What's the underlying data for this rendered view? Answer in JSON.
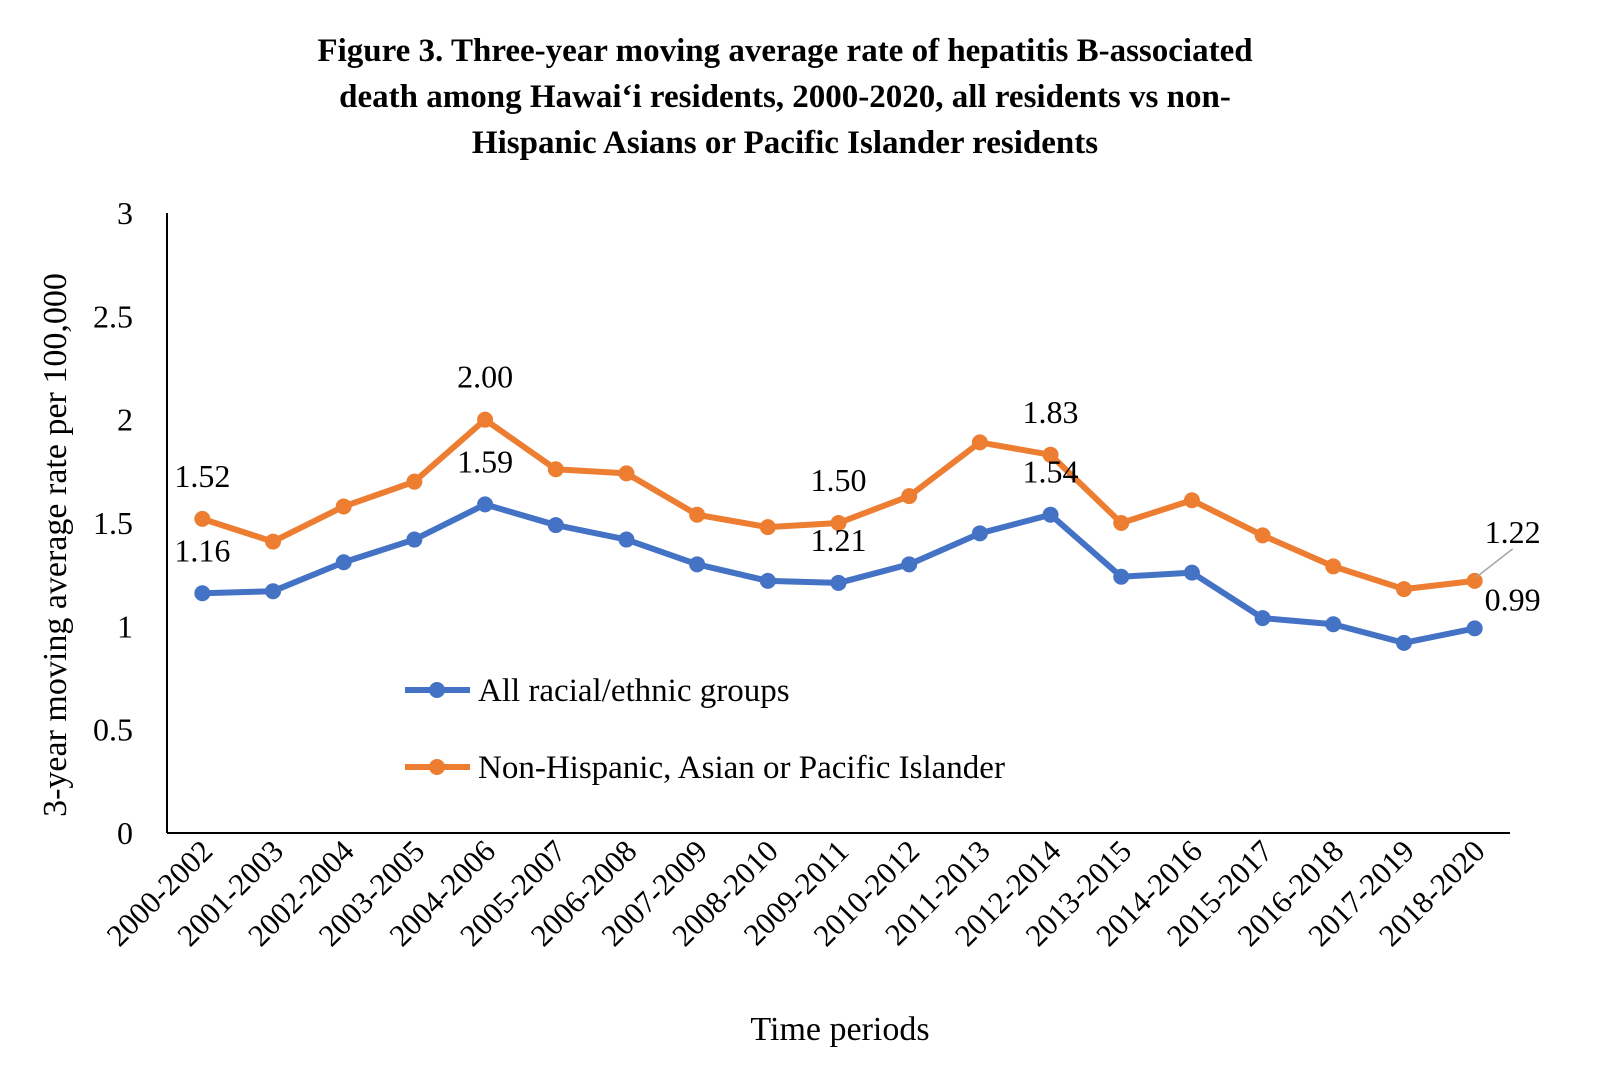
{
  "chart_data": {
    "type": "line",
    "title_lines": [
      "Figure 3. Three-year moving average rate of hepatitis B-associated",
      "death among Hawai‘i residents, 2000-2020, all residents vs non-",
      "Hispanic Asians or Pacific Islander residents"
    ],
    "xlabel": "Time periods",
    "ylabel": "3-year moving average rate per 100,000",
    "ylim": [
      0,
      3
    ],
    "yticks": [
      "0",
      "0.5",
      "1",
      "1.5",
      "2",
      "2.5",
      "3"
    ],
    "grid": false,
    "legend_placement": "inside-bottom-left",
    "categories": [
      "2000-2002",
      "2001-2003",
      "2002-2004",
      "2003-2005",
      "2004-2006",
      "2005-2007",
      "2006-2008",
      "2007-2009",
      "2008-2010",
      "2009-2011",
      "2010-2012",
      "2011-2013",
      "2012-2014",
      "2013-2015",
      "2014-2016",
      "2015-2017",
      "2016-2018",
      "2017-2019",
      "2018-2020"
    ],
    "series": [
      {
        "name": "All racial/ethnic groups",
        "color": "#4472C4",
        "values": [
          1.16,
          1.17,
          1.31,
          1.42,
          1.59,
          1.49,
          1.42,
          1.3,
          1.22,
          1.21,
          1.3,
          1.45,
          1.54,
          1.24,
          1.26,
          1.04,
          1.01,
          0.92,
          0.99
        ]
      },
      {
        "name": "Non-Hispanic, Asian or Pacific Islander",
        "color": "#ED7D31",
        "values": [
          1.52,
          1.41,
          1.58,
          1.7,
          2.0,
          1.76,
          1.74,
          1.54,
          1.48,
          1.5,
          1.63,
          1.89,
          1.83,
          1.5,
          1.61,
          1.44,
          1.29,
          1.18,
          1.22
        ]
      }
    ],
    "data_labels": [
      {
        "series": 1,
        "index": 0,
        "text": "1.52"
      },
      {
        "series": 0,
        "index": 0,
        "text": "1.16"
      },
      {
        "series": 1,
        "index": 4,
        "text": "2.00"
      },
      {
        "series": 0,
        "index": 4,
        "text": "1.59"
      },
      {
        "series": 1,
        "index": 9,
        "text": "1.50"
      },
      {
        "series": 0,
        "index": 9,
        "text": "1.21"
      },
      {
        "series": 1,
        "index": 12,
        "text": "1.83"
      },
      {
        "series": 0,
        "index": 12,
        "text": "1.54"
      },
      {
        "series": 1,
        "index": 18,
        "text": "1.22"
      },
      {
        "series": 0,
        "index": 18,
        "text": "0.99"
      }
    ]
  }
}
